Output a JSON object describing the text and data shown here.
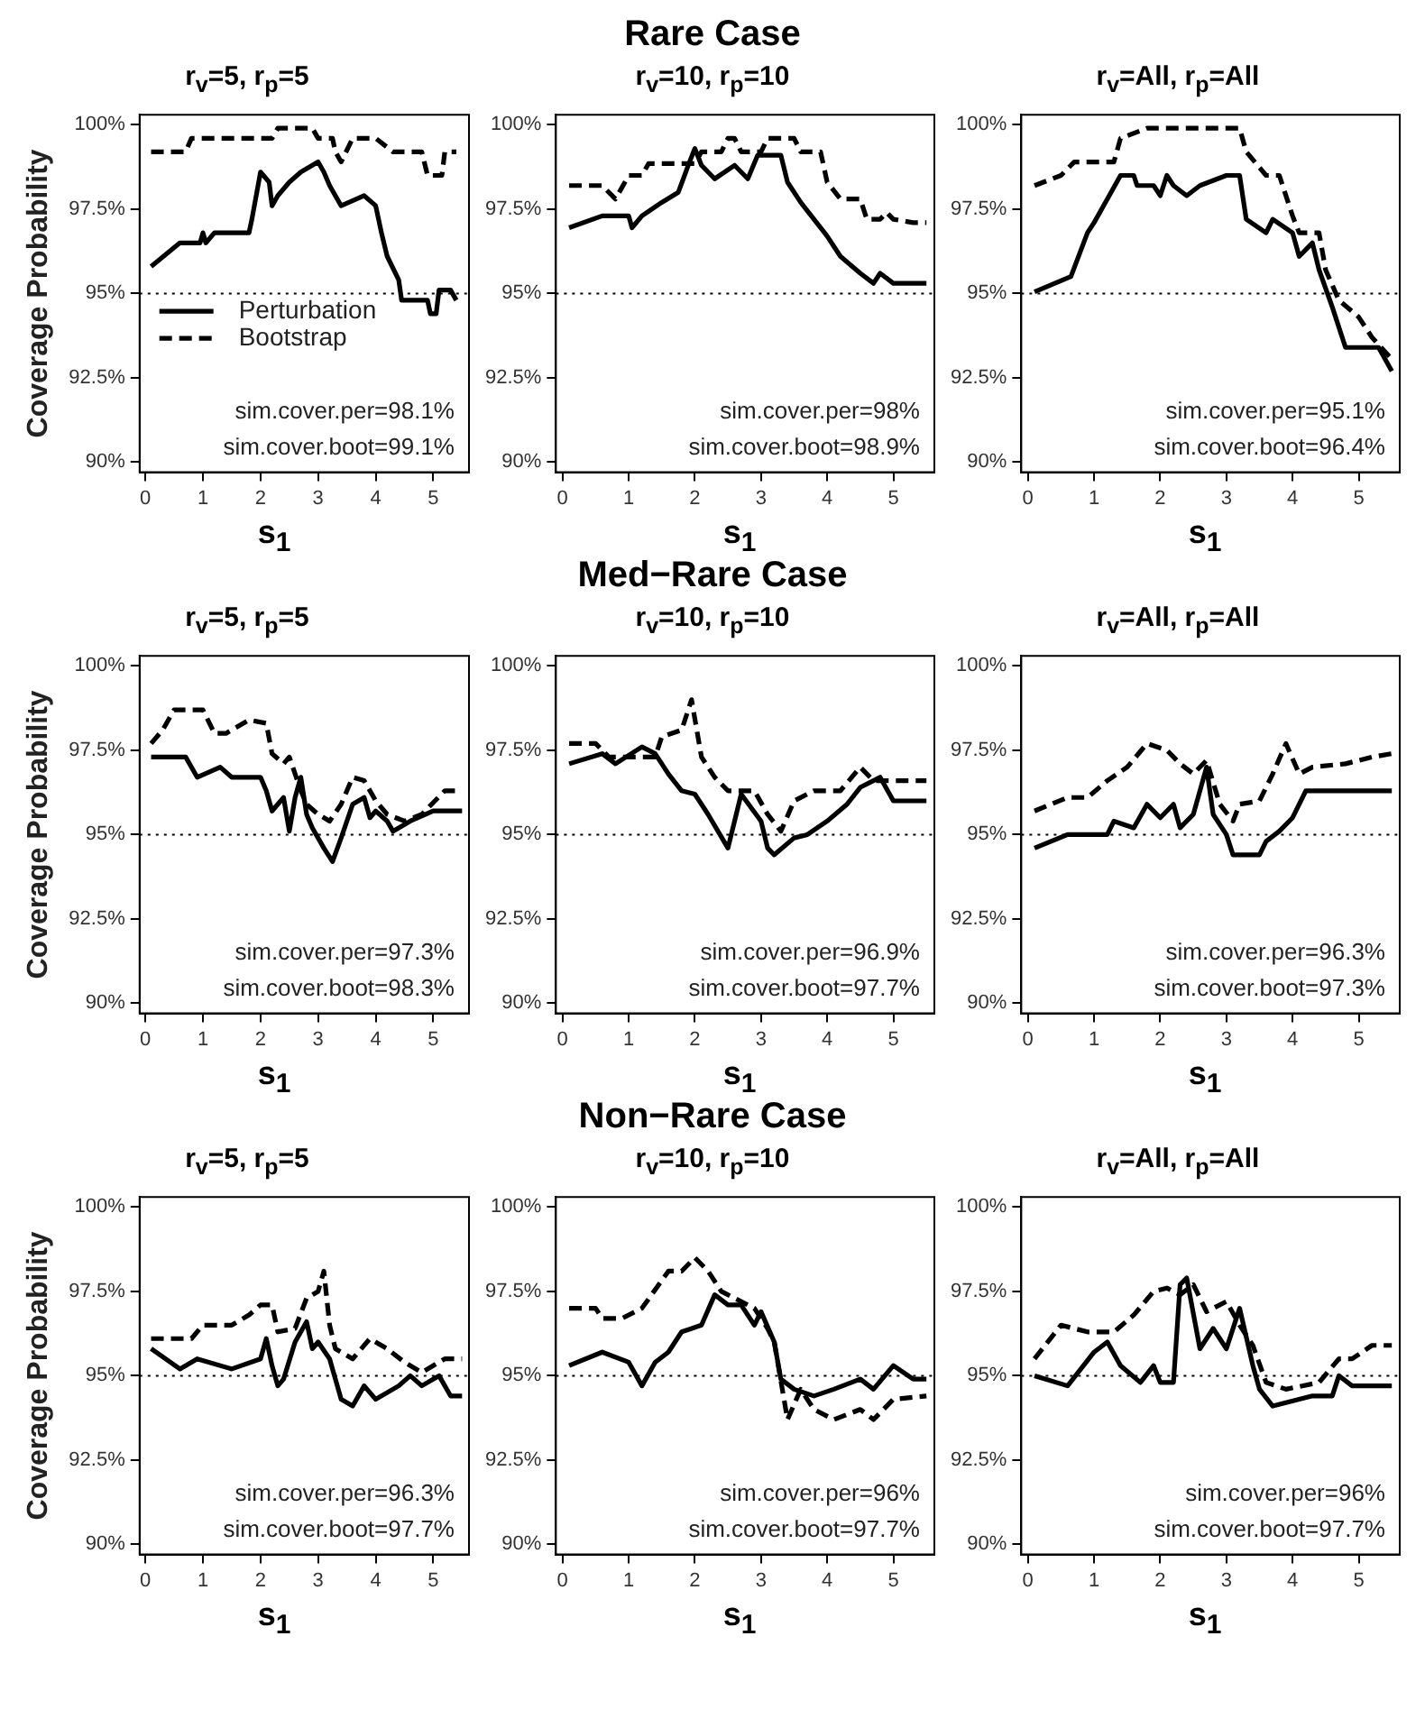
{
  "chart_data": [
    {
      "type": "line",
      "title": "r$_{v}$=5, r$_{p}$=5",
      "xlabel": "s$_{1}$",
      "ylabel": "Coverage Probability",
      "xlim": [
        -0.1,
        5.62
      ],
      "ylim": [
        89.7,
        100.3
      ],
      "xticks": [
        0,
        1,
        2,
        3,
        4,
        5
      ],
      "yticks": [
        {
          "value": 90,
          "label": "90%"
        },
        {
          "value": 92.5,
          "label": "92.5%"
        },
        {
          "value": 95,
          "label": "95%"
        },
        {
          "value": 97.5,
          "label": "97.5%"
        },
        {
          "value": 100,
          "label": "100%"
        }
      ],
      "legend": "left",
      "ref_lines": [
        {
          "axis": "y",
          "value": 95,
          "color": "#000000",
          "line_style": "dotted"
        }
      ],
      "annotations": [
        "sim.cover.per=98.1%",
        "sim.cover.boot=99.1%"
      ],
      "series": [
        {
          "name": "Perturbation",
          "color": "#000000",
          "line_style": "solid",
          "x": [
            0.1,
            0.6,
            0.95,
            1.0,
            1.05,
            1.2,
            1.8,
            1.85,
            2.0,
            2.15,
            2.2,
            2.3,
            2.5,
            2.7,
            3.0,
            3.1,
            3.2,
            3.3,
            3.4,
            3.8,
            4.0,
            4.1,
            4.2,
            4.4,
            4.45,
            4.9,
            4.95,
            5.05,
            5.1,
            5.3,
            5.4
          ],
          "values": [
            95.8,
            96.5,
            96.5,
            96.8,
            96.5,
            96.8,
            96.8,
            97.2,
            98.6,
            98.3,
            97.6,
            97.9,
            98.3,
            98.6,
            98.9,
            98.6,
            98.2,
            97.9,
            97.6,
            97.9,
            97.6,
            96.8,
            96.1,
            95.4,
            94.8,
            94.8,
            94.4,
            94.4,
            95.1,
            95.1,
            94.8
          ]
        },
        {
          "name": "Bootstrap",
          "color": "#000000",
          "line_style": "dashed",
          "x": [
            0.1,
            0.7,
            0.8,
            2.2,
            2.3,
            2.9,
            3.0,
            3.25,
            3.3,
            3.4,
            3.6,
            3.8,
            4.0,
            4.3,
            4.8,
            4.9,
            5.15,
            5.2,
            5.4
          ],
          "values": [
            99.2,
            99.2,
            99.6,
            99.6,
            99.9,
            99.9,
            99.6,
            99.6,
            99.2,
            98.9,
            99.6,
            99.6,
            99.6,
            99.2,
            99.2,
            98.5,
            98.5,
            99.2,
            99.2
          ]
        }
      ]
    },
    {
      "type": "line",
      "subtitle": "Rare Case",
      "title": "r$_{v}$=10, r$_{p}$=10",
      "xlabel": "s$_{1}$",
      "xlim": [
        -0.1,
        5.62
      ],
      "ylim": [
        89.7,
        100.3
      ],
      "xticks": [
        0,
        1,
        2,
        3,
        4,
        5
      ],
      "yticks": [
        {
          "value": 90,
          "label": "90%"
        },
        {
          "value": 92.5,
          "label": "92.5%"
        },
        {
          "value": 95,
          "label": "95%"
        },
        {
          "value": 97.5,
          "label": "97.5%"
        },
        {
          "value": 100,
          "label": "100%"
        }
      ],
      "ref_lines": [
        {
          "axis": "y",
          "value": 95,
          "color": "#000000",
          "line_style": "dotted"
        }
      ],
      "annotations": [
        "sim.cover.per=98%",
        "sim.cover.boot=98.9%"
      ],
      "series": [
        {
          "color": "#000000",
          "line_style": "solid",
          "x": [
            0.1,
            0.6,
            1.0,
            1.05,
            1.2,
            1.5,
            1.75,
            1.9,
            2.0,
            2.1,
            2.3,
            2.6,
            2.8,
            2.95,
            3.3,
            3.4,
            3.6,
            3.8,
            4.0,
            4.2,
            4.5,
            4.7,
            4.8,
            5.0,
            5.5
          ],
          "values": [
            96.95,
            97.3,
            97.3,
            96.95,
            97.3,
            97.7,
            98.0,
            98.8,
            99.3,
            98.8,
            98.4,
            98.8,
            98.4,
            99.1,
            99.1,
            98.3,
            97.7,
            97.2,
            96.7,
            96.1,
            95.6,
            95.3,
            95.6,
            95.3,
            95.3
          ]
        },
        {
          "color": "#000000",
          "line_style": "dashed",
          "x": [
            0.1,
            0.6,
            0.8,
            1.0,
            1.2,
            1.3,
            2.0,
            2.1,
            2.4,
            2.5,
            2.6,
            2.7,
            3.0,
            3.1,
            3.5,
            3.6,
            3.9,
            4.0,
            4.2,
            4.5,
            4.6,
            4.8,
            4.9,
            5.0,
            5.3,
            5.5
          ],
          "values": [
            98.2,
            98.2,
            97.8,
            98.5,
            98.5,
            98.85,
            98.85,
            99.2,
            99.2,
            99.6,
            99.6,
            99.2,
            99.2,
            99.6,
            99.6,
            99.2,
            99.2,
            98.3,
            97.8,
            97.8,
            97.2,
            97.2,
            97.4,
            97.2,
            97.1,
            97.1
          ]
        }
      ]
    },
    {
      "type": "line",
      "title": "r$_{v}$=All, r$_{p}$=All",
      "xlabel": "s$_{1}$",
      "xlim": [
        -0.1,
        5.62
      ],
      "ylim": [
        89.7,
        100.3
      ],
      "xticks": [
        0,
        1,
        2,
        3,
        4,
        5
      ],
      "yticks": [
        {
          "value": 90,
          "label": "90%"
        },
        {
          "value": 92.5,
          "label": "92.5%"
        },
        {
          "value": 95,
          "label": "95%"
        },
        {
          "value": 97.5,
          "label": "97.5%"
        },
        {
          "value": 100,
          "label": "100%"
        }
      ],
      "ref_lines": [
        {
          "axis": "y",
          "value": 95,
          "color": "#000000",
          "line_style": "dotted"
        }
      ],
      "annotations": [
        "sim.cover.per=95.1%",
        "sim.cover.boot=96.4%"
      ],
      "series": [
        {
          "color": "#000000",
          "line_style": "solid",
          "x": [
            0.1,
            0.65,
            0.9,
            1.0,
            1.2,
            1.4,
            1.6,
            1.65,
            1.9,
            2.0,
            2.1,
            2.2,
            2.4,
            2.6,
            3.0,
            3.2,
            3.3,
            3.6,
            3.7,
            4.0,
            4.1,
            4.3,
            4.4,
            4.6,
            4.8,
            5.3,
            5.5
          ],
          "values": [
            95.05,
            95.5,
            96.8,
            97.1,
            97.8,
            98.5,
            98.5,
            98.2,
            98.2,
            97.9,
            98.5,
            98.2,
            97.9,
            98.2,
            98.5,
            98.5,
            97.2,
            96.8,
            97.2,
            96.8,
            96.1,
            96.5,
            95.7,
            94.6,
            93.4,
            93.4,
            92.7
          ]
        },
        {
          "color": "#000000",
          "line_style": "dashed",
          "x": [
            0.1,
            0.5,
            0.7,
            1.3,
            1.4,
            1.8,
            3.2,
            3.3,
            3.6,
            3.8,
            4.0,
            4.1,
            4.4,
            4.5,
            4.7,
            5.0,
            5.2,
            5.5
          ],
          "values": [
            98.2,
            98.5,
            98.9,
            98.9,
            99.6,
            99.9,
            99.9,
            99.2,
            98.5,
            98.5,
            97.3,
            96.8,
            96.8,
            95.7,
            94.8,
            94.3,
            93.7,
            93.05
          ]
        }
      ]
    },
    {
      "type": "line",
      "title": "r$_{v}$=5, r$_{p}$=5",
      "xlabel": "s$_{1}$",
      "ylabel": "Coverage Probability",
      "xlim": [
        -0.1,
        5.62
      ],
      "ylim": [
        89.7,
        100.3
      ],
      "xticks": [
        0,
        1,
        2,
        3,
        4,
        5
      ],
      "yticks": [
        {
          "value": 90,
          "label": "90%"
        },
        {
          "value": 92.5,
          "label": "92.5%"
        },
        {
          "value": 95,
          "label": "95%"
        },
        {
          "value": 97.5,
          "label": "97.5%"
        },
        {
          "value": 100,
          "label": "100%"
        }
      ],
      "ref_lines": [
        {
          "axis": "y",
          "value": 95,
          "color": "#000000",
          "line_style": "dotted"
        }
      ],
      "annotations": [
        "sim.cover.per=97.3%",
        "sim.cover.boot=98.3%"
      ],
      "series": [
        {
          "color": "#000000",
          "line_style": "solid",
          "x": [
            0.1,
            0.7,
            0.9,
            1.3,
            1.5,
            2.0,
            2.1,
            2.2,
            2.4,
            2.5,
            2.6,
            2.7,
            2.8,
            2.9,
            3.1,
            3.25,
            3.4,
            3.6,
            3.8,
            3.9,
            4.0,
            4.2,
            4.3,
            4.6,
            5.0,
            5.5
          ],
          "values": [
            97.3,
            97.3,
            96.7,
            97.0,
            96.7,
            96.7,
            96.3,
            95.7,
            96.1,
            95.1,
            96.1,
            96.7,
            95.6,
            95.2,
            94.6,
            94.2,
            94.9,
            95.9,
            96.1,
            95.5,
            95.7,
            95.4,
            95.1,
            95.4,
            95.7,
            95.7
          ]
        },
        {
          "color": "#000000",
          "line_style": "dashed",
          "x": [
            0.1,
            0.3,
            0.5,
            1.0,
            1.2,
            1.4,
            1.8,
            2.1,
            2.2,
            2.4,
            2.5,
            2.7,
            2.8,
            3.0,
            3.2,
            3.4,
            3.6,
            3.8,
            4.0,
            4.2,
            4.5,
            4.8,
            5.2,
            5.5
          ],
          "values": [
            97.7,
            98.1,
            98.7,
            98.7,
            98.0,
            98.0,
            98.4,
            98.3,
            97.4,
            97.1,
            97.3,
            96.3,
            95.9,
            95.6,
            95.4,
            95.9,
            96.7,
            96.6,
            96.0,
            95.6,
            95.4,
            95.6,
            96.3,
            96.3
          ]
        }
      ]
    },
    {
      "type": "line",
      "subtitle": "Med−Rare Case",
      "title": "r$_{v}$=10, r$_{p}$=10",
      "xlabel": "s$_{1}$",
      "xlim": [
        -0.1,
        5.62
      ],
      "ylim": [
        89.7,
        100.3
      ],
      "xticks": [
        0,
        1,
        2,
        3,
        4,
        5
      ],
      "yticks": [
        {
          "value": 90,
          "label": "90%"
        },
        {
          "value": 92.5,
          "label": "92.5%"
        },
        {
          "value": 95,
          "label": "95%"
        },
        {
          "value": 97.5,
          "label": "97.5%"
        },
        {
          "value": 100,
          "label": "100%"
        }
      ],
      "ref_lines": [
        {
          "axis": "y",
          "value": 95,
          "color": "#000000",
          "line_style": "dotted"
        }
      ],
      "annotations": [
        "sim.cover.per=96.9%",
        "sim.cover.boot=97.7%"
      ],
      "series": [
        {
          "color": "#000000",
          "line_style": "solid",
          "x": [
            0.1,
            0.6,
            0.8,
            1.2,
            1.4,
            1.6,
            1.8,
            2.0,
            2.2,
            2.5,
            2.7,
            3.0,
            3.1,
            3.2,
            3.5,
            3.7,
            4.0,
            4.3,
            4.5,
            4.8,
            5.0,
            5.5
          ],
          "values": [
            97.1,
            97.4,
            97.1,
            97.6,
            97.4,
            96.8,
            96.3,
            96.2,
            95.6,
            94.6,
            96.2,
            95.4,
            94.6,
            94.4,
            94.9,
            95.0,
            95.4,
            95.9,
            96.4,
            96.7,
            96.0,
            96.0
          ]
        },
        {
          "color": "#000000",
          "line_style": "dashed",
          "x": [
            0.1,
            0.5,
            0.7,
            1.4,
            1.5,
            1.8,
            1.95,
            2.1,
            2.3,
            2.5,
            2.9,
            3.1,
            3.3,
            3.5,
            3.8,
            4.2,
            4.5,
            4.7,
            5.5
          ],
          "values": [
            97.7,
            97.7,
            97.3,
            97.3,
            97.9,
            98.1,
            99.0,
            97.3,
            96.7,
            96.3,
            96.3,
            95.6,
            95.1,
            96.0,
            96.3,
            96.3,
            97.0,
            96.6,
            96.6
          ]
        }
      ]
    },
    {
      "type": "line",
      "title": "r$_{v}$=All, r$_{p}$=All",
      "xlabel": "s$_{1}$",
      "xlim": [
        -0.1,
        5.62
      ],
      "ylim": [
        89.7,
        100.3
      ],
      "xticks": [
        0,
        1,
        2,
        3,
        4,
        5
      ],
      "yticks": [
        {
          "value": 90,
          "label": "90%"
        },
        {
          "value": 92.5,
          "label": "92.5%"
        },
        {
          "value": 95,
          "label": "95%"
        },
        {
          "value": 97.5,
          "label": "97.5%"
        },
        {
          "value": 100,
          "label": "100%"
        }
      ],
      "ref_lines": [
        {
          "axis": "y",
          "value": 95,
          "color": "#000000",
          "line_style": "dotted"
        }
      ],
      "annotations": [
        "sim.cover.per=96.3%",
        "sim.cover.boot=97.3%"
      ],
      "series": [
        {
          "color": "#000000",
          "line_style": "solid",
          "x": [
            0.1,
            0.6,
            1.2,
            1.3,
            1.6,
            1.8,
            2.0,
            2.2,
            2.3,
            2.5,
            2.7,
            2.8,
            3.0,
            3.1,
            3.5,
            3.6,
            3.8,
            4.0,
            4.2,
            5.5
          ],
          "values": [
            94.6,
            95.0,
            95.0,
            95.4,
            95.2,
            95.9,
            95.5,
            95.9,
            95.2,
            95.6,
            97.0,
            95.6,
            95.0,
            94.4,
            94.4,
            94.8,
            95.1,
            95.5,
            96.3,
            96.3
          ]
        },
        {
          "color": "#000000",
          "line_style": "dashed",
          "x": [
            0.1,
            0.6,
            0.9,
            1.2,
            1.5,
            1.8,
            2.1,
            2.3,
            2.5,
            2.7,
            2.9,
            3.1,
            3.2,
            3.5,
            3.7,
            3.9,
            4.1,
            4.3,
            4.8,
            5.2,
            5.5
          ],
          "values": [
            95.7,
            96.1,
            96.1,
            96.6,
            97.0,
            97.7,
            97.5,
            97.1,
            96.8,
            97.2,
            95.9,
            95.4,
            95.9,
            96.0,
            96.8,
            97.7,
            96.8,
            97.0,
            97.1,
            97.3,
            97.4
          ]
        }
      ]
    },
    {
      "type": "line",
      "title": "r$_{v}$=5, r$_{p}$=5",
      "xlabel": "s$_{1}$",
      "ylabel": "Coverage Probability",
      "xlim": [
        -0.1,
        5.62
      ],
      "ylim": [
        89.7,
        100.3
      ],
      "xticks": [
        0,
        1,
        2,
        3,
        4,
        5
      ],
      "yticks": [
        {
          "value": 90,
          "label": "90%"
        },
        {
          "value": 92.5,
          "label": "92.5%"
        },
        {
          "value": 95,
          "label": "95%"
        },
        {
          "value": 97.5,
          "label": "97.5%"
        },
        {
          "value": 100,
          "label": "100%"
        }
      ],
      "ref_lines": [
        {
          "axis": "y",
          "value": 95,
          "color": "#000000",
          "line_style": "dotted"
        }
      ],
      "annotations": [
        "sim.cover.per=96.3%",
        "sim.cover.boot=97.7%"
      ],
      "series": [
        {
          "color": "#000000",
          "line_style": "solid",
          "x": [
            0.1,
            0.6,
            0.9,
            1.5,
            2.0,
            2.1,
            2.2,
            2.3,
            2.4,
            2.6,
            2.8,
            2.9,
            3.0,
            3.2,
            3.4,
            3.6,
            3.8,
            4.0,
            4.4,
            4.6,
            4.8,
            5.1,
            5.3,
            5.5
          ],
          "values": [
            95.8,
            95.2,
            95.5,
            95.2,
            95.5,
            96.1,
            95.3,
            94.7,
            94.9,
            96.0,
            96.6,
            95.8,
            96.0,
            95.5,
            94.3,
            94.1,
            94.7,
            94.3,
            94.7,
            95.0,
            94.7,
            95.0,
            94.4,
            94.4
          ]
        },
        {
          "color": "#000000",
          "line_style": "dashed",
          "x": [
            0.1,
            0.8,
            1.0,
            1.5,
            1.8,
            2.0,
            2.2,
            2.3,
            2.6,
            2.8,
            3.0,
            3.1,
            3.2,
            3.3,
            3.6,
            3.9,
            4.2,
            4.5,
            4.8,
            5.2,
            5.5
          ],
          "values": [
            96.1,
            96.1,
            96.5,
            96.5,
            96.8,
            97.1,
            97.1,
            96.3,
            96.4,
            97.3,
            97.5,
            98.1,
            96.5,
            95.8,
            95.5,
            96.1,
            95.8,
            95.4,
            95.1,
            95.5,
            95.5
          ]
        }
      ]
    },
    {
      "type": "line",
      "subtitle": "Non−Rare Case",
      "title": "r$_{v}$=10, r$_{p}$=10",
      "xlabel": "s$_{1}$",
      "xlim": [
        -0.1,
        5.62
      ],
      "ylim": [
        89.7,
        100.3
      ],
      "xticks": [
        0,
        1,
        2,
        3,
        4,
        5
      ],
      "yticks": [
        {
          "value": 90,
          "label": "90%"
        },
        {
          "value": 92.5,
          "label": "92.5%"
        },
        {
          "value": 95,
          "label": "95%"
        },
        {
          "value": 97.5,
          "label": "97.5%"
        },
        {
          "value": 100,
          "label": "100%"
        }
      ],
      "ref_lines": [
        {
          "axis": "y",
          "value": 95,
          "color": "#000000",
          "line_style": "dotted"
        }
      ],
      "annotations": [
        "sim.cover.per=96%",
        "sim.cover.boot=97.7%"
      ],
      "series": [
        {
          "color": "#000000",
          "line_style": "solid",
          "x": [
            0.1,
            0.6,
            1.0,
            1.2,
            1.4,
            1.6,
            1.8,
            2.1,
            2.3,
            2.5,
            2.7,
            2.9,
            3.0,
            3.2,
            3.3,
            3.5,
            3.8,
            4.1,
            4.5,
            4.7,
            5.0,
            5.3,
            5.5
          ],
          "values": [
            95.3,
            95.7,
            95.4,
            94.7,
            95.4,
            95.7,
            96.3,
            96.5,
            97.4,
            97.1,
            97.1,
            96.5,
            96.9,
            96.0,
            94.9,
            94.6,
            94.4,
            94.6,
            94.9,
            94.6,
            95.3,
            94.9,
            94.9
          ]
        },
        {
          "color": "#000000",
          "line_style": "dashed",
          "x": [
            0.1,
            0.5,
            0.6,
            0.9,
            1.2,
            1.6,
            1.8,
            2.0,
            2.2,
            2.4,
            2.6,
            2.9,
            3.1,
            3.2,
            3.4,
            3.6,
            3.8,
            4.1,
            4.5,
            4.7,
            5.0,
            5.5
          ],
          "values": [
            97.0,
            97.0,
            96.7,
            96.7,
            97.0,
            98.1,
            98.1,
            98.5,
            98.1,
            97.5,
            97.3,
            97.0,
            96.4,
            96.0,
            93.7,
            94.6,
            94.0,
            93.7,
            94.0,
            93.7,
            94.3,
            94.4
          ]
        }
      ]
    },
    {
      "type": "line",
      "title": "r$_{v}$=All, r$_{p}$=All",
      "xlabel": "s$_{1}$",
      "xlim": [
        -0.1,
        5.62
      ],
      "ylim": [
        89.7,
        100.3
      ],
      "xticks": [
        0,
        1,
        2,
        3,
        4,
        5
      ],
      "yticks": [
        {
          "value": 90,
          "label": "90%"
        },
        {
          "value": 92.5,
          "label": "92.5%"
        },
        {
          "value": 95,
          "label": "95%"
        },
        {
          "value": 97.5,
          "label": "97.5%"
        },
        {
          "value": 100,
          "label": "100%"
        }
      ],
      "ref_lines": [
        {
          "axis": "y",
          "value": 95,
          "color": "#000000",
          "line_style": "dotted"
        }
      ],
      "annotations": [
        "sim.cover.per=96%",
        "sim.cover.boot=97.7%"
      ],
      "series": [
        {
          "color": "#000000",
          "line_style": "solid",
          "x": [
            0.1,
            0.6,
            1.0,
            1.2,
            1.4,
            1.7,
            1.9,
            2.0,
            2.2,
            2.3,
            2.4,
            2.6,
            2.8,
            3.0,
            3.2,
            3.4,
            3.5,
            3.7,
            4.3,
            4.6,
            4.7,
            4.9,
            5.5
          ],
          "values": [
            95.0,
            94.7,
            95.7,
            96.0,
            95.3,
            94.8,
            95.3,
            94.8,
            94.8,
            97.7,
            97.9,
            95.8,
            96.4,
            95.8,
            97.0,
            95.3,
            94.6,
            94.1,
            94.4,
            94.4,
            95.0,
            94.7,
            94.7
          ]
        },
        {
          "color": "#000000",
          "line_style": "dashed",
          "x": [
            0.1,
            0.5,
            0.9,
            1.3,
            1.6,
            1.9,
            2.1,
            2.3,
            2.5,
            2.7,
            3.0,
            3.2,
            3.4,
            3.6,
            3.9,
            4.4,
            4.7,
            4.9,
            5.2,
            5.5
          ],
          "values": [
            95.5,
            96.5,
            96.3,
            96.3,
            96.8,
            97.5,
            97.6,
            97.4,
            97.7,
            96.9,
            97.2,
            96.5,
            95.9,
            94.8,
            94.6,
            94.8,
            95.5,
            95.5,
            95.9,
            95.9
          ]
        }
      ]
    }
  ]
}
